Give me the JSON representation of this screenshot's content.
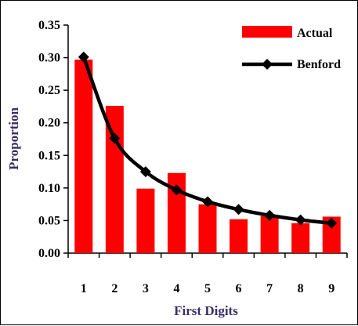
{
  "chart_data": {
    "type": "bar",
    "categories": [
      "1",
      "2",
      "3",
      "4",
      "5",
      "6",
      "7",
      "8",
      "9"
    ],
    "series": [
      {
        "name": "Actual",
        "kind": "bar",
        "color": "#ff0000",
        "values": [
          0.297,
          0.226,
          0.099,
          0.123,
          0.075,
          0.052,
          0.057,
          0.046,
          0.056
        ]
      },
      {
        "name": "Benford",
        "kind": "line",
        "color": "#000000",
        "marker": "diamond",
        "values": [
          0.301,
          0.176,
          0.125,
          0.097,
          0.079,
          0.067,
          0.058,
          0.051,
          0.046
        ]
      }
    ],
    "xlabel": "First Digits",
    "ylabel": "Proportion",
    "ylim": [
      0,
      0.35
    ],
    "yticks": [
      "0.00",
      "0.05",
      "0.10",
      "0.15",
      "0.20",
      "0.25",
      "0.30",
      "0.35"
    ],
    "label_color": "#3b2f63",
    "grid": false,
    "legend_position": "top-right"
  }
}
